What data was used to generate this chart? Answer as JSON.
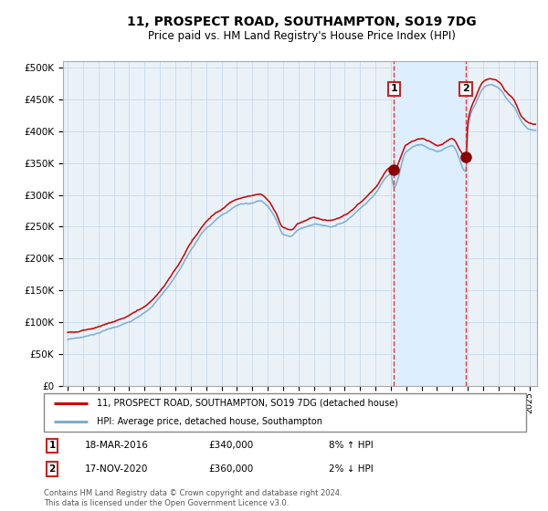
{
  "title": "11, PROSPECT ROAD, SOUTHAMPTON, SO19 7DG",
  "subtitle": "Price paid vs. HM Land Registry's House Price Index (HPI)",
  "legend_line1": "11, PROSPECT ROAD, SOUTHAMPTON, SO19 7DG (detached house)",
  "legend_line2": "HPI: Average price, detached house, Southampton",
  "annotation1_date": "18-MAR-2016",
  "annotation1_price": "£340,000",
  "annotation1_hpi": "8% ↑ HPI",
  "annotation1_year": 2016.21,
  "annotation1_value": 340000,
  "annotation2_date": "17-NOV-2020",
  "annotation2_price": "£360,000",
  "annotation2_hpi": "2% ↓ HPI",
  "annotation2_year": 2020.88,
  "annotation2_value": 360000,
  "red_line_color": "#cc0000",
  "blue_line_color": "#7aafd4",
  "shaded_color": "#ddeeff",
  "dot_color": "#8b0000",
  "vline_color": "#ee3333",
  "grid_color": "#c8daea",
  "bg_color": "#eaf2f8",
  "title_fontsize": 10,
  "subtitle_fontsize": 8.5,
  "copyright_text": "Contains HM Land Registry data © Crown copyright and database right 2024.\nThis data is licensed under the Open Government Licence v3.0.",
  "ylim": [
    0,
    510000
  ],
  "xlim_start": 1994.7,
  "xlim_end": 2025.5
}
